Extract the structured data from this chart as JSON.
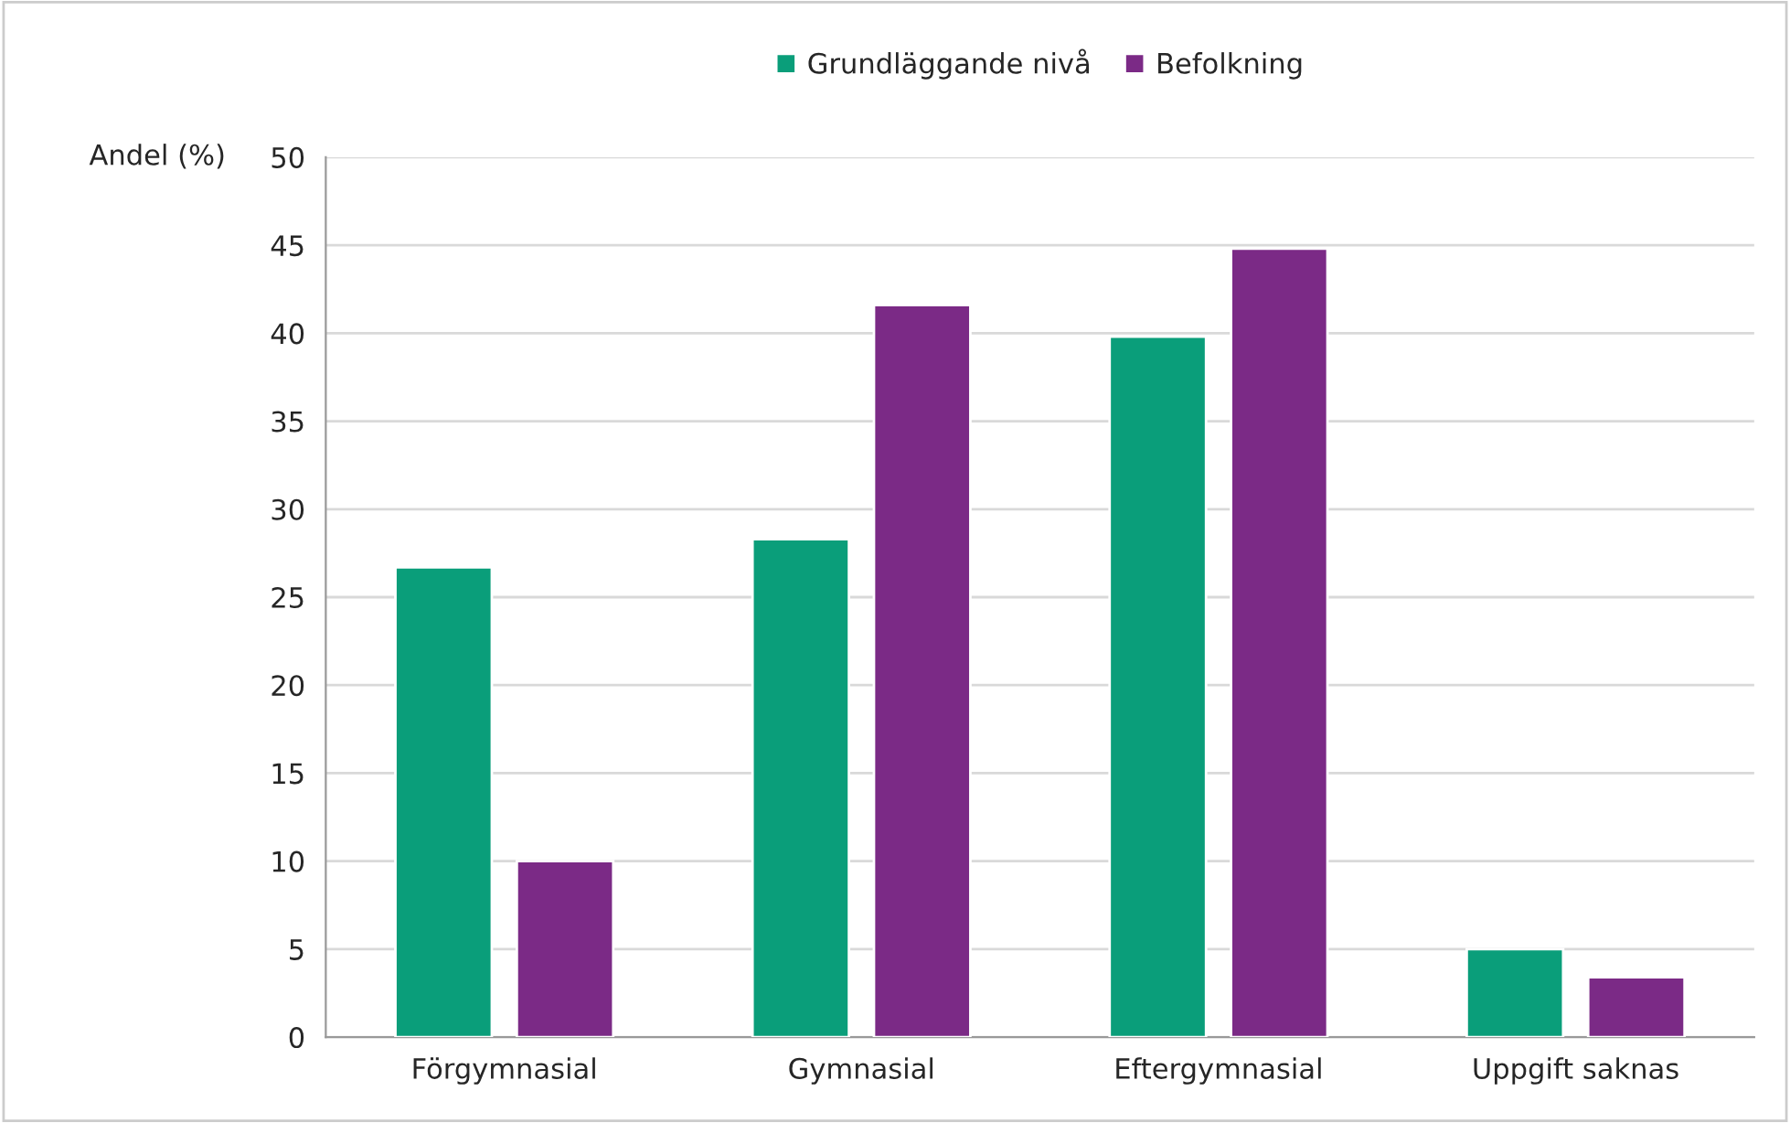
{
  "chart_data": {
    "type": "bar",
    "ylabel": "Andel (%)",
    "categories": [
      "Förgymnasial",
      "Gymnasial",
      "Eftergymnasial",
      "Uppgift saknas"
    ],
    "series": [
      {
        "name": "Grundläggande nivå",
        "color": "#0a9e7a",
        "values": [
          26.7,
          28.3,
          39.8,
          5.0
        ]
      },
      {
        "name": "Befolkning",
        "color": "#7b2a86",
        "values": [
          10.0,
          41.6,
          44.8,
          3.4
        ]
      }
    ],
    "ylim": [
      0,
      50
    ],
    "yticks": [
      0,
      5,
      10,
      15,
      20,
      25,
      30,
      35,
      40,
      45,
      50
    ],
    "grid": "y",
    "legend": "top"
  }
}
